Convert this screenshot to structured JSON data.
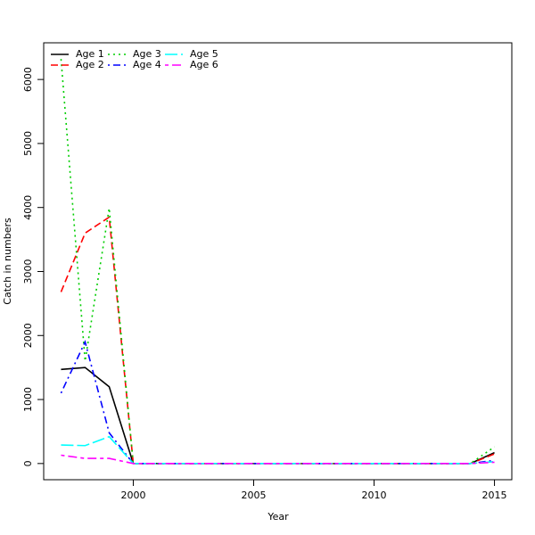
{
  "chart_data": {
    "type": "line",
    "xlabel": "Year",
    "ylabel": "Catch in numbers",
    "x": [
      1997,
      1998,
      1999,
      2000,
      2001,
      2002,
      2003,
      2004,
      2005,
      2006,
      2007,
      2008,
      2009,
      2010,
      2011,
      2012,
      2013,
      2014,
      2015
    ],
    "series": [
      {
        "name": "Age 1",
        "color": "#000000",
        "linestyle": "solid",
        "values": [
          1470,
          1500,
          1200,
          0,
          0,
          0,
          0,
          0,
          0,
          0,
          0,
          0,
          0,
          0,
          0,
          0,
          0,
          0,
          170
        ]
      },
      {
        "name": "Age 2",
        "color": "#ff0000",
        "linestyle": "dashed",
        "values": [
          2680,
          3600,
          3850,
          0,
          0,
          0,
          0,
          0,
          0,
          0,
          0,
          0,
          0,
          0,
          0,
          0,
          0,
          0,
          150
        ]
      },
      {
        "name": "Age 3",
        "color": "#00cd00",
        "linestyle": "dotted",
        "values": [
          6320,
          1600,
          3990,
          0,
          0,
          0,
          0,
          0,
          0,
          0,
          0,
          0,
          0,
          0,
          0,
          0,
          0,
          0,
          260
        ]
      },
      {
        "name": "Age 4",
        "color": "#0000ff",
        "linestyle": "dotdash",
        "values": [
          1100,
          1900,
          480,
          0,
          0,
          0,
          0,
          0,
          0,
          0,
          0,
          0,
          0,
          0,
          0,
          0,
          0,
          0,
          50
        ]
      },
      {
        "name": "Age 5",
        "color": "#00ffff",
        "linestyle": "longdash",
        "values": [
          290,
          280,
          420,
          0,
          0,
          0,
          0,
          0,
          0,
          0,
          0,
          0,
          0,
          0,
          0,
          0,
          0,
          0,
          30
        ]
      },
      {
        "name": "Age 6",
        "color": "#ff00ff",
        "linestyle": "twodash",
        "values": [
          130,
          80,
          80,
          0,
          0,
          0,
          0,
          0,
          0,
          0,
          0,
          0,
          0,
          0,
          0,
          0,
          0,
          0,
          20
        ]
      }
    ],
    "xlim": [
      1996.28,
      2015.72
    ],
    "xticks": [
      2000,
      2005,
      2010,
      2015
    ],
    "ylim": [
      -253,
      6573
    ],
    "yticks": [
      0,
      1000,
      2000,
      3000,
      4000,
      5000,
      6000
    ],
    "legend": "top-left"
  }
}
